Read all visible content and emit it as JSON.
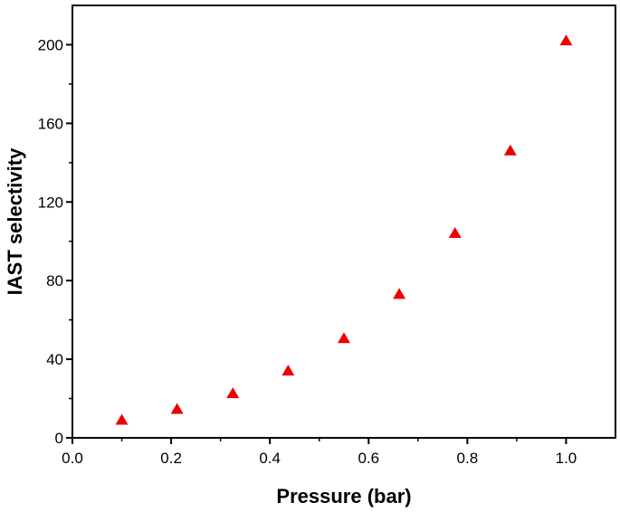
{
  "chart_data": {
    "type": "scatter",
    "title": "",
    "xlabel": "Pressure (bar)",
    "ylabel": "IAST selectivity",
    "xlim": [
      0.0,
      1.1
    ],
    "ylim": [
      0,
      220
    ],
    "xticks": [
      0.0,
      0.2,
      0.4,
      0.6,
      0.8,
      1.0
    ],
    "xtick_labels": [
      "0.0",
      "0.2",
      "0.4",
      "0.6",
      "0.8",
      "1.0"
    ],
    "yticks": [
      0,
      40,
      80,
      120,
      160,
      200
    ],
    "ytick_labels": [
      "0",
      "40",
      "80",
      "120",
      "160",
      "200"
    ],
    "grid": false,
    "legend": "none",
    "marker": "triangle-up",
    "marker_color": "#ee0000",
    "series": [
      {
        "x": [
          0.1,
          0.212,
          0.325,
          0.437,
          0.55,
          0.662,
          0.775,
          0.887,
          1.0
        ],
        "y": [
          9,
          14.5,
          22.5,
          34,
          50.5,
          73,
          104,
          146,
          202
        ]
      }
    ]
  }
}
